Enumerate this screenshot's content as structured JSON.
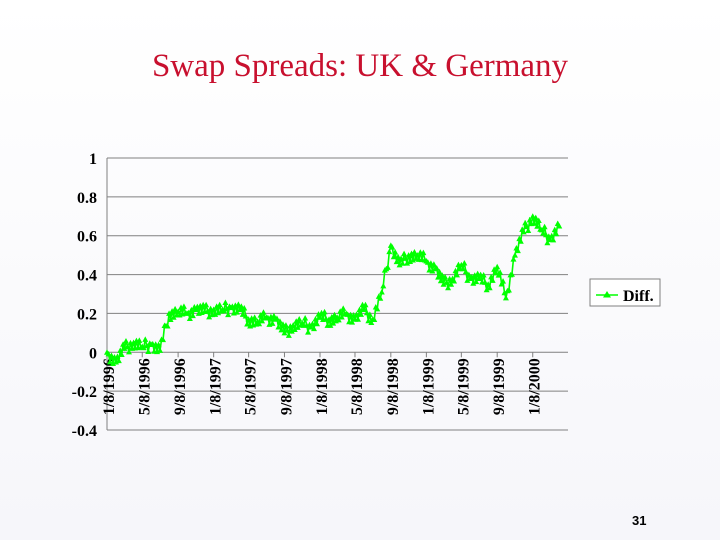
{
  "slide": {
    "title": "Swap Spreads: UK & Germany",
    "page_number": "31"
  },
  "chart_data": {
    "type": "line",
    "title": "",
    "xlabel": "",
    "ylabel": "",
    "ylim": [
      -0.4,
      1
    ],
    "yticks": [
      "1",
      "0.8",
      "0.6",
      "0.4",
      "0.2",
      "0",
      "-0.2",
      "-0.4"
    ],
    "ytick_values": [
      1,
      0.8,
      0.6,
      0.4,
      0.2,
      0,
      -0.2,
      -0.4
    ],
    "xticks": [
      "1/8/1996",
      "5/8/1996",
      "9/8/1996",
      "1/8/1997",
      "5/8/1997",
      "9/8/1997",
      "1/8/1998",
      "5/8/1998",
      "9/8/1998",
      "1/8/1999",
      "5/8/1999",
      "9/8/1999",
      "1/8/2000"
    ],
    "xlim": [
      "1996-01-08",
      "2000-05-08"
    ],
    "grid": true,
    "legend": "right",
    "series": [
      {
        "name": "Diff.",
        "color": "#00ff00",
        "marker": "triangle",
        "x": [
          "1996-01-08",
          "1996-02-08",
          "1996-03-08",
          "1996-04-08",
          "1996-05-08",
          "1996-06-08",
          "1996-07-08",
          "1996-08-08",
          "1996-09-08",
          "1996-10-08",
          "1996-11-08",
          "1996-12-08",
          "1997-01-08",
          "1997-02-08",
          "1997-03-08",
          "1997-04-08",
          "1997-05-08",
          "1997-06-08",
          "1997-07-08",
          "1997-08-08",
          "1997-09-08",
          "1997-10-08",
          "1997-11-08",
          "1997-12-08",
          "1998-01-08",
          "1998-02-08",
          "1998-03-08",
          "1998-04-08",
          "1998-05-08",
          "1998-06-08",
          "1998-07-08",
          "1998-08-08",
          "1998-09-08",
          "1998-10-08",
          "1998-11-08",
          "1998-12-08",
          "1999-01-08",
          "1999-02-08",
          "1999-03-08",
          "1999-04-08",
          "1999-05-08",
          "1999-06-08",
          "1999-07-08",
          "1999-08-08",
          "1999-09-08",
          "1999-10-08",
          "1999-11-08",
          "1999-12-08",
          "2000-01-08",
          "2000-02-08",
          "2000-03-08",
          "2000-04-08"
        ],
        "values": [
          0.0,
          -0.05,
          0.02,
          0.05,
          0.03,
          0.04,
          0.01,
          0.2,
          0.21,
          0.2,
          0.22,
          0.21,
          0.22,
          0.22,
          0.23,
          0.22,
          0.17,
          0.16,
          0.18,
          0.17,
          0.1,
          0.14,
          0.15,
          0.13,
          0.18,
          0.17,
          0.18,
          0.2,
          0.17,
          0.22,
          0.17,
          0.31,
          0.55,
          0.45,
          0.5,
          0.5,
          0.47,
          0.43,
          0.35,
          0.38,
          0.45,
          0.38,
          0.38,
          0.35,
          0.44,
          0.28,
          0.5,
          0.62,
          0.7,
          0.63,
          0.58,
          0.65
        ]
      }
    ]
  }
}
